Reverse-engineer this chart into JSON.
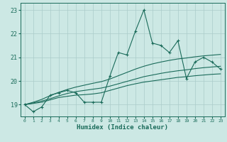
{
  "xlabel": "Humidex (Indice chaleur)",
  "bg_color": "#cce8e4",
  "grid_color": "#aaccca",
  "line_color": "#1a6b5a",
  "xlim": [
    -0.5,
    23.5
  ],
  "ylim": [
    18.5,
    23.3
  ],
  "yticks": [
    19,
    20,
    21,
    22,
    23
  ],
  "xticks": [
    0,
    1,
    2,
    3,
    4,
    5,
    6,
    7,
    8,
    9,
    10,
    11,
    12,
    13,
    14,
    15,
    16,
    17,
    18,
    19,
    20,
    21,
    22,
    23
  ],
  "main_series": [
    19.0,
    18.7,
    18.9,
    19.4,
    19.5,
    19.6,
    19.5,
    19.1,
    19.1,
    19.1,
    20.2,
    21.2,
    21.1,
    22.1,
    23.0,
    21.6,
    21.5,
    21.2,
    21.7,
    20.1,
    20.8,
    21.0,
    20.8,
    20.5
  ],
  "smooth1": [
    19.0,
    19.05,
    19.1,
    19.2,
    19.3,
    19.35,
    19.4,
    19.42,
    19.45,
    19.5,
    19.6,
    19.7,
    19.8,
    19.88,
    19.95,
    20.0,
    20.05,
    20.1,
    20.15,
    20.18,
    20.22,
    20.25,
    20.28,
    20.3
  ],
  "smooth2": [
    19.0,
    19.07,
    19.15,
    19.25,
    19.37,
    19.47,
    19.55,
    19.6,
    19.65,
    19.7,
    19.78,
    19.88,
    19.98,
    20.08,
    20.18,
    20.25,
    20.32,
    20.38,
    20.43,
    20.47,
    20.52,
    20.56,
    20.59,
    20.62
  ],
  "smooth3": [
    19.0,
    19.1,
    19.22,
    19.38,
    19.52,
    19.64,
    19.74,
    19.82,
    19.9,
    19.97,
    20.08,
    20.22,
    20.36,
    20.5,
    20.62,
    20.72,
    20.8,
    20.87,
    20.93,
    20.97,
    21.02,
    21.06,
    21.09,
    21.12
  ]
}
